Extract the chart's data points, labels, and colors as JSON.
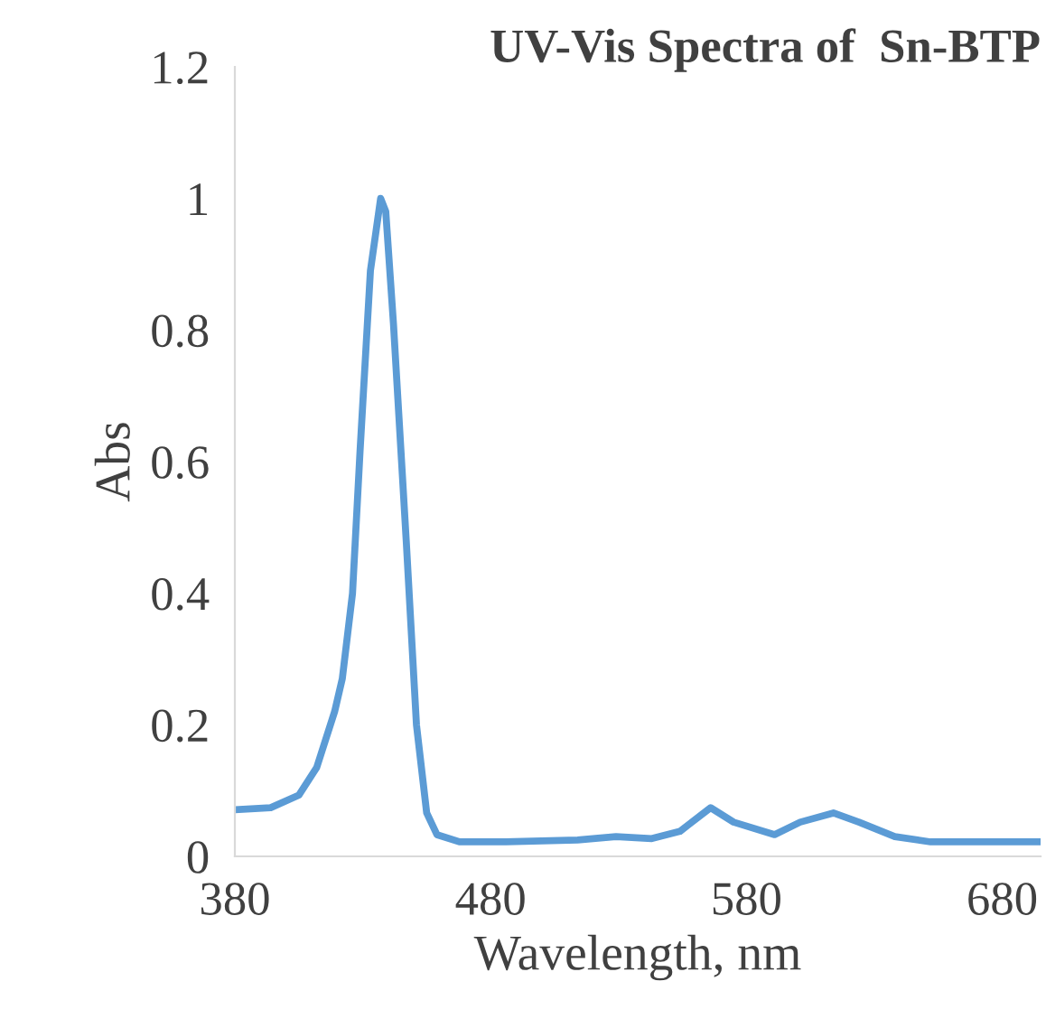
{
  "chart_data": {
    "type": "line",
    "title": "UV-Vis Spectra of  Sn-BTP",
    "xlabel": "Wavelength, nm",
    "ylabel": "Abs",
    "x": [
      380,
      394,
      405,
      412,
      419,
      422,
      426,
      429,
      433,
      437,
      439,
      442,
      447,
      451,
      455,
      459,
      468,
      486,
      514,
      529,
      543,
      554,
      566,
      575,
      591,
      601,
      614,
      624,
      638,
      652,
      695
    ],
    "series": [
      {
        "color": "#5b9bd5",
        "values": [
          0.071,
          0.074,
          0.093,
          0.135,
          0.22,
          0.27,
          0.4,
          0.62,
          0.89,
          1.0,
          0.98,
          0.81,
          0.48,
          0.2,
          0.066,
          0.033,
          0.022,
          0.022,
          0.025,
          0.03,
          0.027,
          0.038,
          0.074,
          0.052,
          0.033,
          0.052,
          0.066,
          0.052,
          0.03,
          0.022,
          0.022
        ]
      }
    ],
    "xlim": [
      380,
      695
    ],
    "xticks": [
      380,
      480,
      580,
      680
    ],
    "ylim": [
      0,
      1.2
    ],
    "yticks": [
      0,
      0.2,
      0.4,
      0.6,
      0.8,
      1,
      1.2
    ],
    "grid": false,
    "legend": false,
    "marker": "none",
    "line_style": "solid"
  }
}
